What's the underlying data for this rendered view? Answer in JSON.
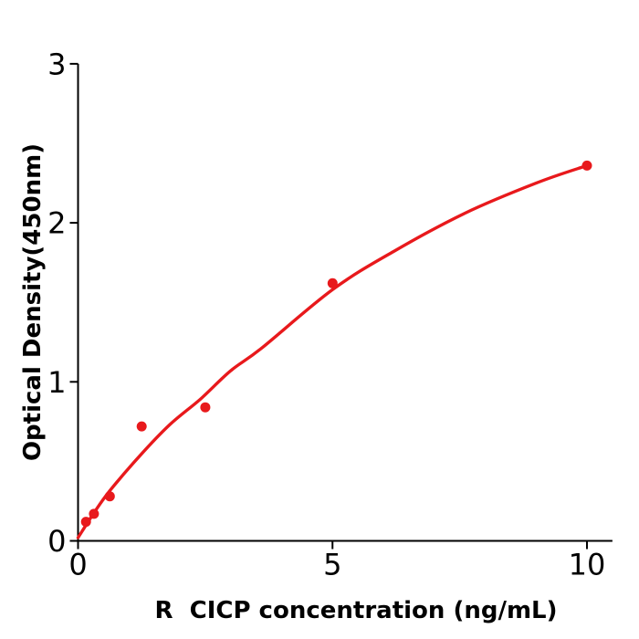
{
  "chart_data": {
    "type": "scatter",
    "title": "",
    "xlabel": "R  CICP concentration (ng/mL)",
    "ylabel": "Optical Density(450nm)",
    "series": [
      {
        "name": "standard-curve-points",
        "x": [
          0.156,
          0.312,
          0.625,
          1.25,
          2.5,
          5,
          10
        ],
        "y": [
          0.12,
          0.17,
          0.28,
          0.72,
          0.84,
          1.62,
          2.36
        ]
      }
    ],
    "fit_curve": [
      [
        0,
        0.02
      ],
      [
        0.31,
        0.175
      ],
      [
        0.625,
        0.315
      ],
      [
        1.2,
        0.53
      ],
      [
        1.8,
        0.73
      ],
      [
        2.4,
        0.89
      ],
      [
        3.0,
        1.07
      ],
      [
        3.6,
        1.21
      ],
      [
        5.0,
        1.58
      ],
      [
        6.2,
        1.82
      ],
      [
        7.6,
        2.06
      ],
      [
        9.0,
        2.25
      ],
      [
        10,
        2.36
      ]
    ],
    "xticks": [
      0,
      5,
      10
    ],
    "yticks": [
      0,
      1,
      2,
      3
    ],
    "xlim": [
      0,
      10.5
    ],
    "ylim": [
      0,
      3
    ],
    "grid": false,
    "legend": null,
    "marker": "circle",
    "colors": {
      "points": "#e8191c",
      "curve": "#e8191c",
      "axis": "#000000",
      "background": "#ffffff"
    }
  }
}
